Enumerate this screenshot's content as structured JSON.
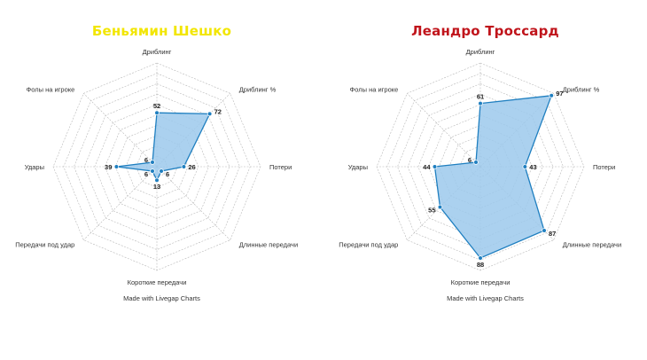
{
  "colors": {
    "left_title": "#f2e600",
    "right_title": "#c0141b",
    "area_fill": "#9cc9ec",
    "area_stroke": "#1f7fc0",
    "grid": "#b8b8b8"
  },
  "credit_text": "Made with Livegap Charts",
  "chart_data": [
    {
      "type": "radar",
      "title": "Беньямин Шешко",
      "axes": [
        "Дриблинг",
        "Дриблинг %",
        "Потери",
        "Длинные передачи",
        "Короткие передачи",
        "Передачи под удар",
        "Удары",
        "Фолы на игроке"
      ],
      "values": [
        52,
        72,
        26,
        6,
        13,
        6,
        39,
        6
      ],
      "range": [
        0,
        100
      ],
      "grid": true,
      "grid_levels": 10
    },
    {
      "type": "radar",
      "title": "Леандро Троссард",
      "axes": [
        "Дриблинг",
        "Дриблинг %",
        "Потери",
        "Длинные передачи",
        "Короткие передачи",
        "Передачи под удар",
        "Удары",
        "Фолы на игроке"
      ],
      "values": [
        61,
        97,
        43,
        87,
        88,
        55,
        44,
        6
      ],
      "range": [
        0,
        100
      ],
      "grid": true,
      "grid_levels": 10
    }
  ]
}
